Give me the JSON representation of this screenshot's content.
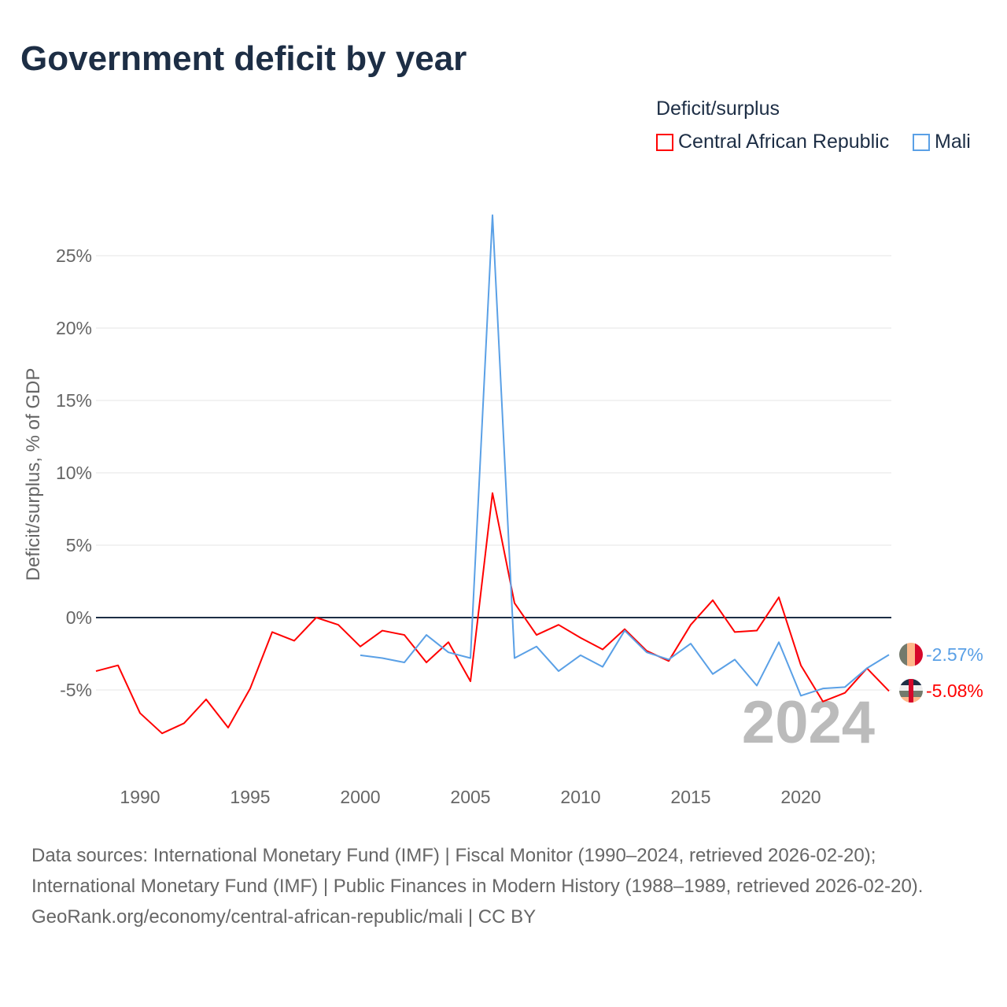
{
  "title": "Government deficit by year",
  "legend": {
    "title": "Deficit/surplus",
    "items": [
      {
        "label": "Central African Republic",
        "color": "#ff0000"
      },
      {
        "label": "Mali",
        "color": "#5aa0e6"
      }
    ]
  },
  "year_label": "2024",
  "end_labels": {
    "car": "-5.08%",
    "mali": "-2.57%"
  },
  "footer": {
    "sources": "Data sources: International Monetary Fund (IMF) | Fiscal Monitor (1990–2024, retrieved 2026-02-20); International Monetary Fund (IMF) | Public Finances in Modern History (1988–1989, retrieved 2026-02-20).",
    "credit": "GeoRank.org/economy/central-african-republic/mali | CC BY"
  },
  "chart_data": {
    "type": "line",
    "title": "Government deficit by year",
    "xlabel": "",
    "ylabel": "Deficit/surplus, % of GDP",
    "xlim": [
      1988,
      2024
    ],
    "ylim": [
      -10,
      28
    ],
    "xticks": [
      1990,
      1995,
      2000,
      2005,
      2010,
      2015,
      2020
    ],
    "yticks": [
      -5,
      0,
      5,
      10,
      15,
      20,
      25
    ],
    "ytick_labels": [
      "-5%",
      "0%",
      "5%",
      "10%",
      "15%",
      "20%",
      "25%"
    ],
    "grid": true,
    "legend_position": "top-right",
    "series": [
      {
        "name": "Central African Republic",
        "color": "#ff0000",
        "x": [
          1988,
          1989,
          1990,
          1991,
          1992,
          1993,
          1994,
          1995,
          1996,
          1997,
          1998,
          1999,
          2000,
          2001,
          2002,
          2003,
          2004,
          2005,
          2006,
          2007,
          2008,
          2009,
          2010,
          2011,
          2012,
          2013,
          2014,
          2015,
          2016,
          2017,
          2018,
          2019,
          2020,
          2021,
          2022,
          2023,
          2024
        ],
        "values": [
          -3.7,
          -3.3,
          -6.6,
          -8.0,
          -7.3,
          -5.65,
          -7.6,
          -4.9,
          -1.0,
          -1.6,
          0.0,
          -0.5,
          -2.0,
          -0.9,
          -1.2,
          -3.1,
          -1.7,
          -4.4,
          8.6,
          1.0,
          -1.2,
          -0.5,
          -1.4,
          -2.2,
          -0.8,
          -2.3,
          -3.0,
          -0.5,
          1.2,
          -1.0,
          -0.9,
          1.4,
          -3.3,
          -5.8,
          -5.2,
          -3.5,
          -5.08
        ]
      },
      {
        "name": "Mali",
        "color": "#5aa0e6",
        "x": [
          2000,
          2001,
          2002,
          2003,
          2004,
          2005,
          2006,
          2007,
          2008,
          2009,
          2010,
          2011,
          2012,
          2013,
          2014,
          2015,
          2016,
          2017,
          2018,
          2019,
          2020,
          2021,
          2022,
          2023,
          2024
        ],
        "values": [
          -2.6,
          -2.8,
          -3.1,
          -1.2,
          -2.4,
          -2.8,
          27.8,
          -2.8,
          -2.0,
          -3.7,
          -2.6,
          -3.4,
          -0.9,
          -2.4,
          -2.9,
          -1.8,
          -3.9,
          -2.9,
          -4.7,
          -1.7,
          -5.4,
          -4.9,
          -4.8,
          -3.5,
          -2.57
        ]
      }
    ]
  }
}
